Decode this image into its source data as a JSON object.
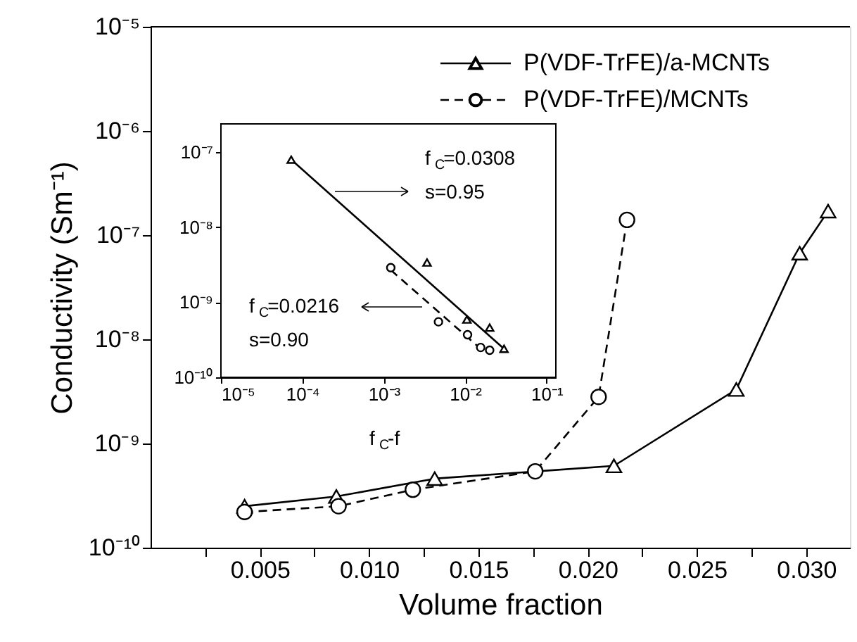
{
  "chart_data": [
    {
      "type": "line",
      "xlabel": "Volume fraction",
      "ylabel": "Conductivity (Sm⁻¹)",
      "log": "y",
      "grid": false,
      "legend": "top right",
      "xlim": [
        0,
        0.032
      ],
      "ylim": [
        1e-10,
        1e-05
      ],
      "xticks": [
        {
          "value": 0.0025,
          "label": null
        },
        {
          "value": 0.005,
          "label": "0.005"
        },
        {
          "value": 0.0075,
          "label": null
        },
        {
          "value": 0.01,
          "label": "0.010"
        },
        {
          "value": 0.0125,
          "label": null
        },
        {
          "value": 0.015,
          "label": "0.015"
        },
        {
          "value": 0.0175,
          "label": null
        },
        {
          "value": 0.02,
          "label": "0.020"
        },
        {
          "value": 0.0225,
          "label": null
        },
        {
          "value": 0.025,
          "label": "0.025"
        },
        {
          "value": 0.0275,
          "label": null
        },
        {
          "value": 0.03,
          "label": "0.030"
        }
      ],
      "yticks": [
        {
          "value": 1e-10,
          "label": "10⁻¹⁰"
        },
        {
          "value": 1e-09,
          "label": "10⁻⁹"
        },
        {
          "value": 1e-08,
          "label": "10⁻⁸"
        },
        {
          "value": 1e-07,
          "label": "10⁻⁷"
        },
        {
          "value": 1e-06,
          "label": "10⁻⁶"
        },
        {
          "value": 1e-05,
          "label": "10⁻⁵"
        }
      ],
      "series": [
        {
          "name": "P(VDF-TrFE)/a-MCNTs",
          "color": "#000000",
          "marker": "triangle",
          "line_style": "solid",
          "x": [
            0.0043,
            0.0085,
            0.013,
            0.0212,
            0.0268,
            0.0297,
            0.031
          ],
          "values": [
            2.5e-10,
            3.1e-10,
            4.6e-10,
            6.1e-10,
            3.3e-09,
            6.7e-08,
            1.7e-07
          ]
        },
        {
          "name": "P(VDF-TrFE)/MCNTs",
          "color": "#000000",
          "marker": "circle",
          "line_style": "dashed",
          "x": [
            0.0043,
            0.0086,
            0.012,
            0.0176,
            0.0205,
            0.0218
          ],
          "values": [
            2.2e-10,
            2.5e-10,
            3.6e-10,
            5.4e-10,
            2.8e-09,
            1.4e-07
          ]
        }
      ]
    },
    {
      "type": "scatter",
      "xlabel": "f$_{C}$-f",
      "log": "xy",
      "grid": false,
      "xlim": [
        1e-05,
        0.13
      ],
      "ylim": [
        1e-10,
        2.4e-07
      ],
      "xticks": [
        {
          "value": 1e-05,
          "label": "10⁻⁵"
        },
        {
          "value": 0.0001,
          "label": "10⁻⁴"
        },
        {
          "value": 0.001,
          "label": "10⁻³"
        },
        {
          "value": 0.01,
          "label": "10⁻²"
        },
        {
          "value": 0.1,
          "label": "10⁻¹"
        }
      ],
      "yticks": [
        {
          "value": 1e-10,
          "label": "10⁻¹⁰"
        },
        {
          "value": 1e-09,
          "label": "10⁻⁹"
        },
        {
          "value": 1e-08,
          "label": "10⁻⁸"
        },
        {
          "value": 1e-07,
          "label": "10⁻⁷"
        }
      ],
      "annotations": [
        "f$_{C}$=0.0308",
        "s=0.95",
        "f$_{C}$=0.0216",
        "s=0.90"
      ],
      "series": [
        {
          "type": "line",
          "color": "#000000",
          "line_style": "solid",
          "x": [
            7.3e-05,
            0.03
          ],
          "values": [
            8e-08,
            2.4e-10
          ]
        },
        {
          "type": "line",
          "color": "#000000",
          "line_style": "dashed",
          "x": [
            0.00122,
            0.0155
          ],
          "values": [
            2.7e-09,
            2.4e-10
          ]
        },
        {
          "type": "scatter",
          "color": "#000000",
          "marker": "triangle",
          "x": [
            7.3e-05,
            0.0034,
            0.0105,
            0.02,
            0.03
          ],
          "values": [
            8e-08,
            3.4e-09,
            5.9e-10,
            4.6e-10,
            2.4e-10
          ]
        },
        {
          "type": "scatter",
          "color": "#000000",
          "marker": "circle",
          "x": [
            0.00122,
            0.0047,
            0.0107,
            0.0155,
            0.02
          ],
          "values": [
            2.9e-09,
            5.5e-10,
            3.7e-10,
            2.5e-10,
            2.3e-10
          ]
        }
      ]
    }
  ]
}
